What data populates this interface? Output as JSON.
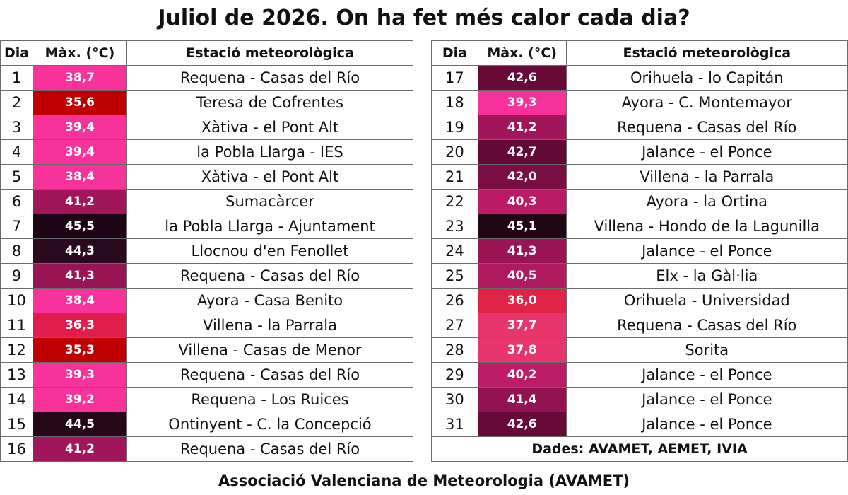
{
  "title": "Juliol de 2026. On ha fet més calor cada dia?",
  "headers": {
    "day": "Dia",
    "max": "Màx. (°C)",
    "station": "Estació meteorològica"
  },
  "rows": [
    {
      "day": "1",
      "max": "38,7",
      "station": "Requena - Casas del Río",
      "color": "#f7329b"
    },
    {
      "day": "2",
      "max": "35,6",
      "station": "Teresa de Cofrentes",
      "color": "#c00000"
    },
    {
      "day": "3",
      "max": "39,4",
      "station": "Xàtiva - el Pont Alt",
      "color": "#f7329b"
    },
    {
      "day": "4",
      "max": "39,4",
      "station": "la Pobla Llarga - IES",
      "color": "#f7329b"
    },
    {
      "day": "5",
      "max": "38,4",
      "station": "Xàtiva - el Pont Alt",
      "color": "#f7329b"
    },
    {
      "day": "6",
      "max": "41,2",
      "station": "Sumacàrcer",
      "color": "#a1165a"
    },
    {
      "day": "7",
      "max": "45,5",
      "station": "la Pobla Llarga - Ajuntament",
      "color": "#1e0515"
    },
    {
      "day": "8",
      "max": "44,3",
      "station": "Llocnou d'en Fenollet",
      "color": "#2a0a1e"
    },
    {
      "day": "9",
      "max": "41,3",
      "station": "Requena - Casas del Río",
      "color": "#981455"
    },
    {
      "day": "10",
      "max": "38,4",
      "station": "Ayora - Casa Benito",
      "color": "#f7329b"
    },
    {
      "day": "11",
      "max": "36,3",
      "station": "Villena - la Parrala",
      "color": "#df1e4e"
    },
    {
      "day": "12",
      "max": "35,3",
      "station": "Villena - Casas de Menor",
      "color": "#c00000"
    },
    {
      "day": "13",
      "max": "39,3",
      "station": "Requena - Casas del Río",
      "color": "#f7329b"
    },
    {
      "day": "14",
      "max": "39,2",
      "station": "Requena - Los Ruices",
      "color": "#f7329b"
    },
    {
      "day": "15",
      "max": "44,5",
      "station": "Ontinyent - C. la Concepció",
      "color": "#250818"
    },
    {
      "day": "16",
      "max": "41,2",
      "station": "Requena - Casas del Río",
      "color": "#a1165a"
    },
    {
      "day": "17",
      "max": "42,6",
      "station": "Orihuela - lo Capitán",
      "color": "#670a38"
    },
    {
      "day": "18",
      "max": "39,3",
      "station": "Ayora - C. Montemayor",
      "color": "#f7329b"
    },
    {
      "day": "19",
      "max": "41,2",
      "station": "Requena - Casas del Río",
      "color": "#a1165a"
    },
    {
      "day": "20",
      "max": "42,7",
      "station": "Jalance - el Ponce",
      "color": "#620a35"
    },
    {
      "day": "21",
      "max": "42,0",
      "station": "Villena - la Parrala",
      "color": "#7a0e43"
    },
    {
      "day": "22",
      "max": "40,3",
      "station": "Ayora - la Ortina",
      "color": "#b91b66"
    },
    {
      "day": "23",
      "max": "45,1",
      "station": "Villena - Hondo de la Lagunilla",
      "color": "#220615"
    },
    {
      "day": "24",
      "max": "41,3",
      "station": "Jalance - el Ponce",
      "color": "#981455"
    },
    {
      "day": "25",
      "max": "40,5",
      "station": "Elx - la Gàl·lia",
      "color": "#b01a61"
    },
    {
      "day": "26",
      "max": "36,0",
      "station": "Orihuela - Universidad",
      "color": "#e02346"
    },
    {
      "day": "27",
      "max": "37,7",
      "station": "Requena - Casas del Río",
      "color": "#e8356d"
    },
    {
      "day": "28",
      "max": "37,8",
      "station": "Sorita",
      "color": "#e8356d"
    },
    {
      "day": "29",
      "max": "40,2",
      "station": "Jalance - el Ponce",
      "color": "#bd1c69"
    },
    {
      "day": "30",
      "max": "41,4",
      "station": "Jalance - el Ponce",
      "color": "#931352"
    },
    {
      "day": "31",
      "max": "42,6",
      "station": "Jalance - el Ponce",
      "color": "#670a38"
    }
  ],
  "sources": "Dades: AVAMET, AEMET, IVIA",
  "footer": "Associació Valenciana de Meteorologia (AVAMET)"
}
